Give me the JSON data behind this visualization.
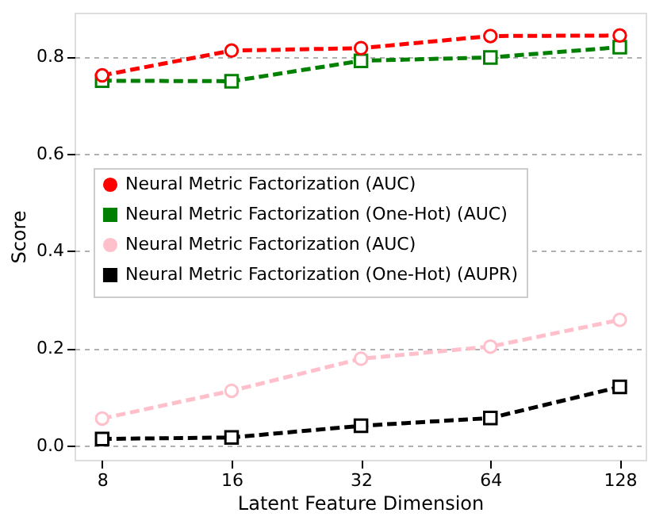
{
  "chart_data": {
    "type": "line",
    "xlabel": "Latent Feature Dimension",
    "ylabel": "Score",
    "x": [
      8,
      16,
      32,
      64,
      128
    ],
    "log": "x",
    "xlim": [
      6.9,
      147
    ],
    "xticks": [
      8,
      16,
      32,
      64,
      128
    ],
    "ylim": [
      -0.03,
      0.89
    ],
    "yticks": [
      {
        "value": 0,
        "label": "0.0"
      },
      0.2,
      0.4,
      0.6,
      0.8
    ],
    "grid": "y",
    "legend": "left",
    "line_style": "dashed",
    "series": [
      {
        "name": "Neural Metric Factorization (AUC)",
        "color": "#ff0000",
        "marker": "circle",
        "values": [
          0.761,
          0.812,
          0.817,
          0.842,
          0.843
        ]
      },
      {
        "name": "Neural Metric Factorization (One-Hot) (AUC)",
        "color": "#008000",
        "marker": "square",
        "values": [
          0.75,
          0.749,
          0.791,
          0.798,
          0.819
        ]
      },
      {
        "name": "Neural Metric Factorization (AUC)",
        "color": "#ffc0cb",
        "marker": "circle",
        "values": [
          0.055,
          0.112,
          0.178,
          0.203,
          0.258
        ]
      },
      {
        "name": "Neural Metric Factorization (One-Hot) (AUPR)",
        "color": "#000000",
        "marker": "square",
        "values": [
          0.013,
          0.016,
          0.04,
          0.056,
          0.12
        ]
      }
    ]
  }
}
